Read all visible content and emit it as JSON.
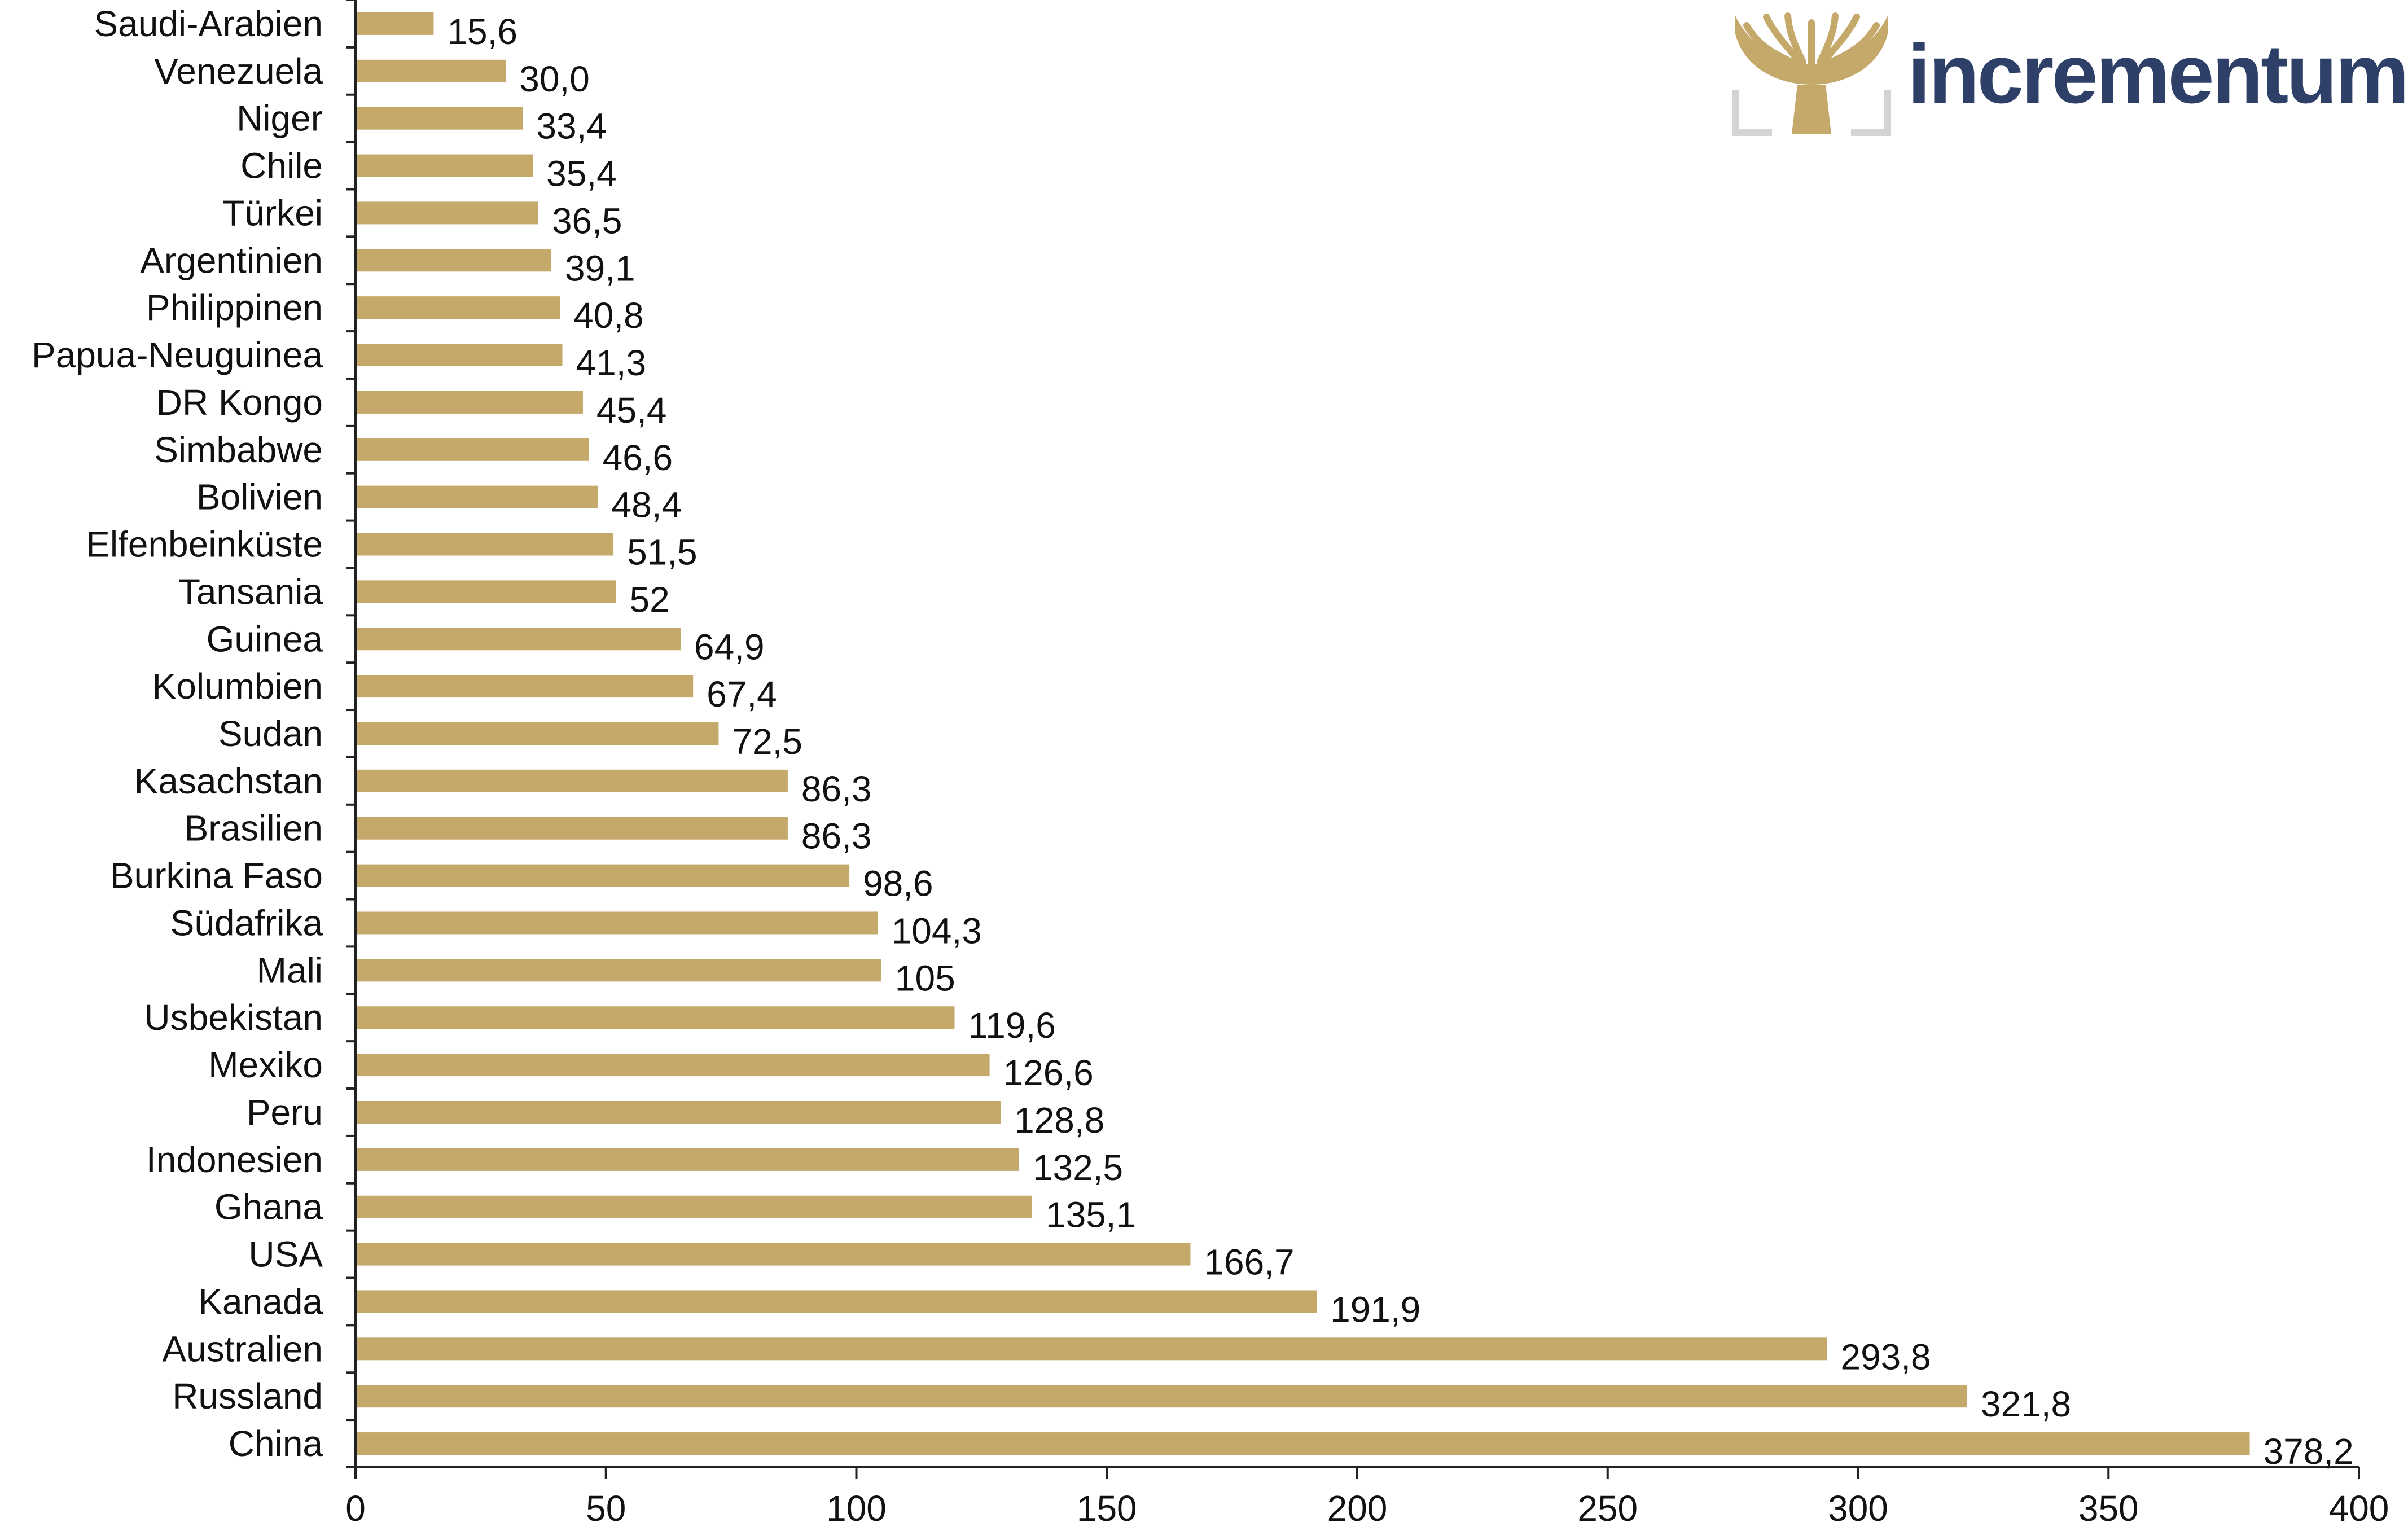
{
  "colors": {
    "bar": "#c5a96b",
    "axis": "#222222",
    "brand_text": "#2e4068",
    "logo_gold": "#c5a96b",
    "logo_frame": "#d4d4d4"
  },
  "logo": {
    "name": "tree-logo-icon",
    "text": "incrementum"
  },
  "chart_data": {
    "type": "bar",
    "orientation": "horizontal",
    "categories": [
      "Saudi-Arabien",
      "Venezuela",
      "Niger",
      "Chile",
      "Türkei",
      "Argentinien",
      "Philippinen",
      "Papua-Neuguinea",
      "DR Kongo",
      "Simbabwe",
      "Bolivien",
      "Elfenbeinküste",
      "Tansania",
      "Guinea",
      "Kolumbien",
      "Sudan",
      "Kasachstan",
      "Brasilien",
      "Burkina Faso",
      "Südafrika",
      "Mali",
      "Usbekistan",
      "Mexiko",
      "Peru",
      "Indonesien",
      "Ghana",
      "USA",
      "Kanada",
      "Australien",
      "Russland",
      "China"
    ],
    "values": [
      15.6,
      30.0,
      33.4,
      35.4,
      36.5,
      39.1,
      40.8,
      41.3,
      45.4,
      46.6,
      48.4,
      51.5,
      52,
      64.9,
      67.4,
      72.5,
      86.3,
      86.3,
      98.6,
      104.3,
      105,
      119.6,
      126.6,
      128.8,
      132.5,
      135.1,
      166.7,
      191.9,
      293.8,
      321.8,
      378.2
    ],
    "value_labels": [
      "15,6",
      "30,0",
      "33,4",
      "35,4",
      "36,5",
      "39,1",
      "40,8",
      "41,3",
      "45,4",
      "46,6",
      "48,4",
      "51,5",
      "52",
      "64,9",
      "67,4",
      "72,5",
      "86,3",
      "86,3",
      "98,6",
      "104,3",
      "105",
      "119,6",
      "126,6",
      "128,8",
      "132,5",
      "135,1",
      "166,7",
      "191,9",
      "293,8",
      "321,8",
      "378,2"
    ],
    "xlim": [
      0,
      400
    ],
    "xticks": [
      0,
      50,
      100,
      150,
      200,
      250,
      300,
      350,
      400
    ],
    "title": "",
    "xlabel": "",
    "ylabel": "",
    "grid": false,
    "legend": false
  }
}
